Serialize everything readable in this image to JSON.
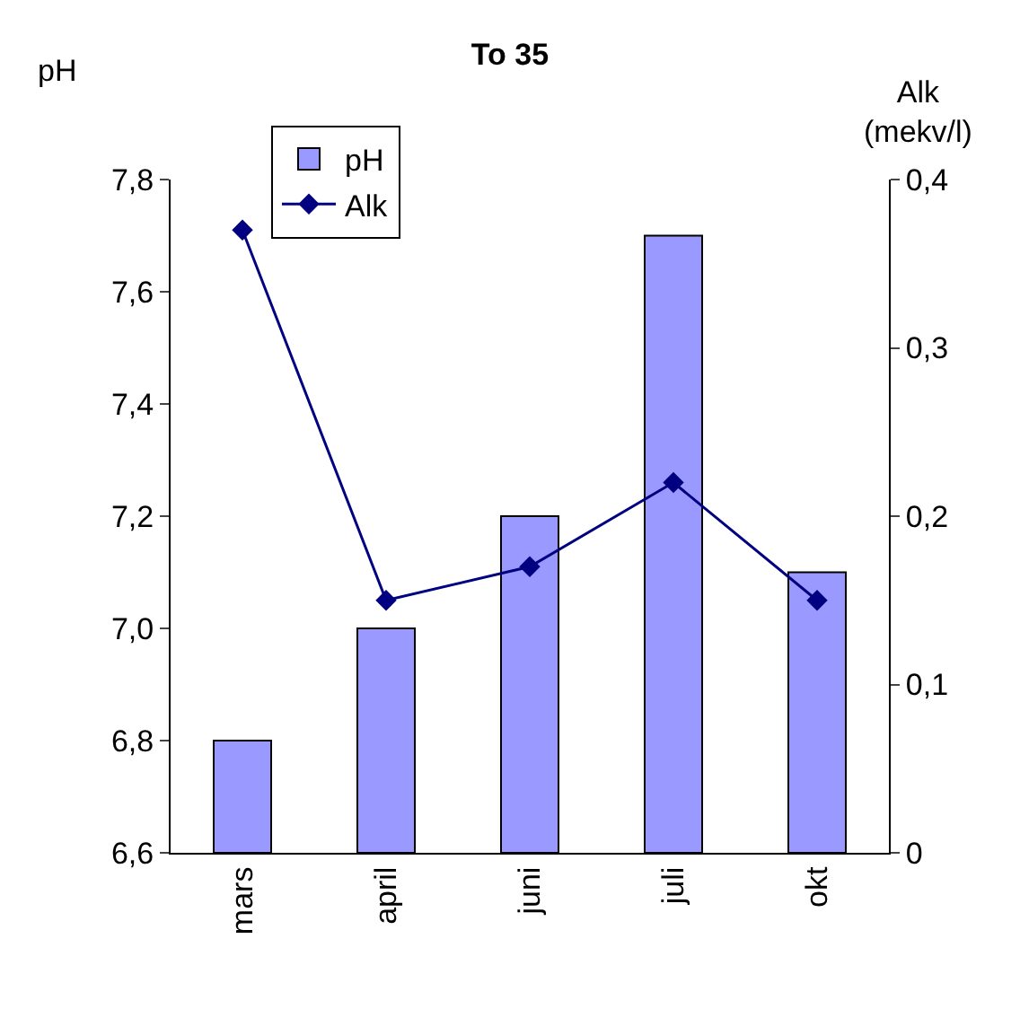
{
  "chart_data": {
    "type": "bar",
    "title": "To 35",
    "ylabel": "pH",
    "y2label": "Alk\n(mekv/l)",
    "categories": [
      "mars",
      "april",
      "juni",
      "juli",
      "okt"
    ],
    "series": [
      {
        "name": "pH",
        "color": "#9999ff",
        "values": [
          6.8,
          7.0,
          7.2,
          7.7,
          7.1
        ]
      },
      {
        "name": "Alk",
        "type": "line",
        "axis": "y2",
        "color": "#000080",
        "marker": "diamond",
        "line_style": "solid",
        "values": [
          0.37,
          0.15,
          0.17,
          0.22,
          0.15
        ]
      }
    ],
    "ylim": [
      6.6,
      7.8
    ],
    "yticks": [
      {
        "value": 6.6,
        "label": "6,6"
      },
      {
        "value": 6.8,
        "label": "6,8"
      },
      {
        "value": 7.0,
        "label": "7,0"
      },
      {
        "value": 7.2,
        "label": "7,2"
      },
      {
        "value": 7.4,
        "label": "7,4"
      },
      {
        "value": 7.6,
        "label": "7,6"
      },
      {
        "value": 7.8,
        "label": "7,8"
      }
    ],
    "y2lim": [
      0,
      0.4
    ],
    "y2ticks": [
      0,
      {
        "value": 0.1,
        "label": "0,1"
      },
      {
        "value": 0.2,
        "label": "0,2"
      },
      {
        "value": 0.3,
        "label": "0,3"
      },
      {
        "value": 0.4,
        "label": "0,4"
      }
    ],
    "legend": "top left"
  }
}
